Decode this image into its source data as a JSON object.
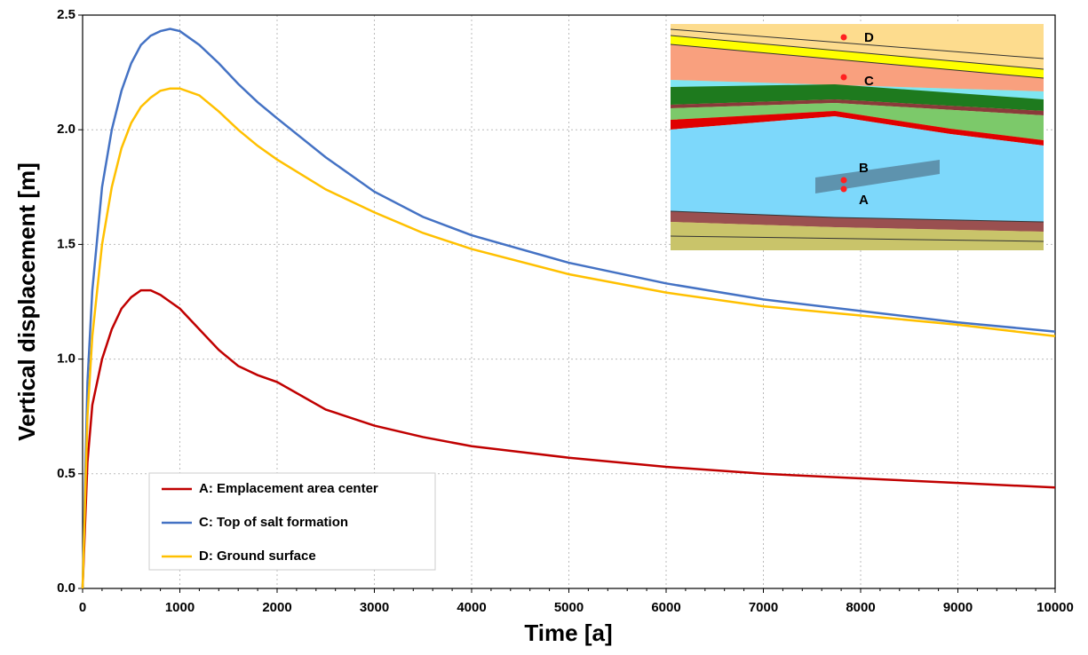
{
  "chart_data": {
    "type": "line",
    "x_label": "Time [a]",
    "y_label": "Vertical displacement [m]",
    "x": [
      0,
      50,
      100,
      200,
      300,
      400,
      500,
      600,
      700,
      800,
      900,
      1000,
      1200,
      1400,
      1600,
      1800,
      2000,
      2500,
      3000,
      3500,
      4000,
      5000,
      6000,
      7000,
      8000,
      9000,
      10000
    ],
    "series": [
      {
        "name": "A: Emplacement area center",
        "color": "#c00000",
        "values": [
          0,
          0.55,
          0.8,
          1.0,
          1.13,
          1.22,
          1.27,
          1.3,
          1.3,
          1.28,
          1.25,
          1.22,
          1.13,
          1.04,
          0.97,
          0.93,
          0.9,
          0.78,
          0.71,
          0.66,
          0.62,
          0.57,
          0.53,
          0.5,
          0.48,
          0.46,
          0.44
        ]
      },
      {
        "name": "C: Top of salt formation",
        "color": "#4472c4",
        "values": [
          0,
          0.9,
          1.3,
          1.75,
          2.0,
          2.17,
          2.29,
          2.37,
          2.41,
          2.43,
          2.44,
          2.43,
          2.37,
          2.29,
          2.2,
          2.12,
          2.05,
          1.88,
          1.73,
          1.62,
          1.54,
          1.42,
          1.33,
          1.26,
          1.21,
          1.16,
          1.12
        ]
      },
      {
        "name": "D: Ground surface",
        "color": "#ffc000",
        "values": [
          0,
          0.75,
          1.1,
          1.5,
          1.75,
          1.92,
          2.03,
          2.1,
          2.14,
          2.17,
          2.18,
          2.18,
          2.15,
          2.08,
          2.0,
          1.93,
          1.87,
          1.74,
          1.64,
          1.55,
          1.48,
          1.37,
          1.29,
          1.23,
          1.19,
          1.15,
          1.1
        ]
      }
    ],
    "xlim": [
      0,
      10000
    ],
    "xticks": [
      0,
      1000,
      2000,
      3000,
      4000,
      5000,
      6000,
      7000,
      8000,
      9000,
      10000
    ],
    "ylim": [
      0,
      2.5
    ],
    "yticks": [
      {
        "value": 0,
        "label": "0.0"
      },
      0.5,
      {
        "value": 1,
        "label": "1.0"
      },
      1.5,
      {
        "value": 2,
        "label": "2.0"
      },
      2.5
    ],
    "grid": true,
    "legend": "lower left"
  },
  "inset_labels": [
    "D",
    "C",
    "B",
    "A"
  ]
}
